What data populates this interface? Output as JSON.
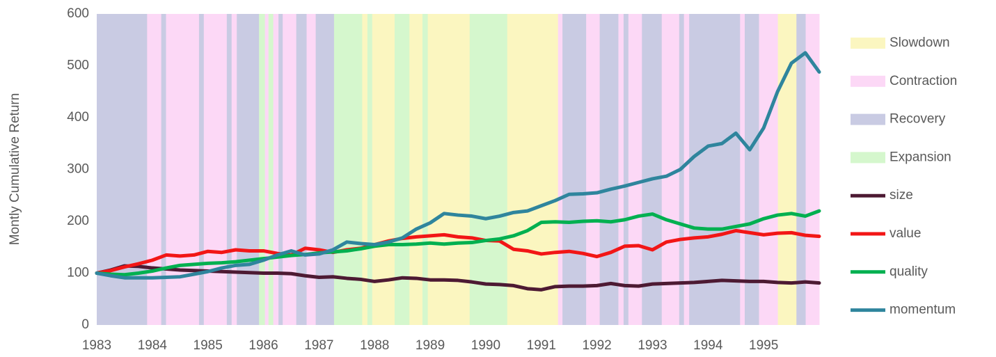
{
  "chart_data": {
    "type": "line",
    "y_label": "Montly Cumulative Return",
    "xlim": [
      1983,
      1996
    ],
    "xticks": [
      1983,
      1984,
      1985,
      1986,
      1987,
      1988,
      1989,
      1990,
      1991,
      1992,
      1993,
      1994,
      1995
    ],
    "ylim": [
      0,
      600
    ],
    "yticks": [
      0,
      100,
      200,
      300,
      400,
      500,
      600
    ],
    "grid": false,
    "legend": "right",
    "regimes": [
      {
        "name": "Slowdown",
        "color": "#fbf6c0",
        "periods": [
          [
            1987.77,
            1987.87
          ],
          [
            1987.95,
            1988.36
          ],
          [
            1988.62,
            1988.86
          ],
          [
            1988.95,
            1989.71
          ],
          [
            1990.38,
            1991.3
          ],
          [
            1995.25,
            1995.59
          ]
        ]
      },
      {
        "name": "Contraction",
        "color": "#fcd8f6",
        "periods": [
          [
            1983.9,
            1984.16
          ],
          [
            1984.24,
            1984.84
          ],
          [
            1984.92,
            1985.34
          ],
          [
            1985.42,
            1985.52
          ],
          [
            1986.02,
            1986.09
          ],
          [
            1986.17,
            1986.27
          ],
          [
            1986.34,
            1986.59
          ],
          [
            1986.77,
            1986.94
          ],
          [
            1991.3,
            1991.38
          ],
          [
            1991.8,
            1992.05
          ],
          [
            1992.38,
            1992.48
          ],
          [
            1992.56,
            1992.81
          ],
          [
            1993.16,
            1993.48
          ],
          [
            1993.56,
            1993.66
          ],
          [
            1994.57,
            1994.66
          ],
          [
            1994.91,
            1995.25
          ],
          [
            1995.75,
            1996
          ]
        ]
      },
      {
        "name": "Recovery",
        "color": "#c9cbe3",
        "periods": [
          [
            1983,
            1983.9
          ],
          [
            1984.16,
            1984.24
          ],
          [
            1984.84,
            1984.92
          ],
          [
            1985.34,
            1985.42
          ],
          [
            1985.52,
            1985.92
          ],
          [
            1986.27,
            1986.34
          ],
          [
            1986.59,
            1986.77
          ],
          [
            1986.94,
            1987.27
          ],
          [
            1991.38,
            1991.8
          ],
          [
            1992.05,
            1992.38
          ],
          [
            1992.48,
            1992.56
          ],
          [
            1992.81,
            1993.16
          ],
          [
            1993.48,
            1993.56
          ],
          [
            1993.66,
            1994.57
          ],
          [
            1994.66,
            1994.91
          ],
          [
            1995.59,
            1995.75
          ]
        ]
      },
      {
        "name": "Expansion",
        "color": "#d5f7cd",
        "periods": [
          [
            1985.92,
            1986.02
          ],
          [
            1986.09,
            1986.17
          ],
          [
            1987.27,
            1987.77
          ],
          [
            1987.87,
            1987.95
          ],
          [
            1988.36,
            1988.62
          ],
          [
            1988.86,
            1988.95
          ],
          [
            1989.71,
            1990.38
          ]
        ]
      }
    ],
    "x": [
      1983,
      1983.25,
      1983.5,
      1983.75,
      1984,
      1984.25,
      1984.5,
      1984.75,
      1985,
      1985.25,
      1985.5,
      1985.75,
      1986,
      1986.25,
      1986.5,
      1986.75,
      1987,
      1987.25,
      1987.5,
      1987.75,
      1988,
      1988.25,
      1988.5,
      1988.75,
      1989,
      1989.25,
      1989.5,
      1989.75,
      1990,
      1990.25,
      1990.5,
      1990.75,
      1991,
      1991.25,
      1991.5,
      1991.75,
      1992,
      1992.25,
      1992.5,
      1992.75,
      1993,
      1993.25,
      1993.5,
      1993.75,
      1994,
      1994.25,
      1994.5,
      1994.75,
      1995,
      1995.25,
      1995.5,
      1995.75,
      1996
    ],
    "series": [
      {
        "name": "size",
        "color": "#4d1a33",
        "values": [
          100,
          106,
          114,
          113,
          110,
          108,
          106,
          105,
          104,
          103,
          102,
          101,
          100,
          100,
          99,
          95,
          92,
          93,
          90,
          88,
          84,
          87,
          91,
          90,
          87,
          87,
          86,
          83,
          79,
          78,
          76,
          70,
          68,
          74,
          75,
          75,
          76,
          80,
          76,
          75,
          79,
          80,
          81,
          82,
          84,
          86,
          85,
          84,
          84,
          82,
          81,
          83,
          81
        ]
      },
      {
        "name": "value",
        "color": "#f21616",
        "values": [
          100,
          105,
          112,
          118,
          125,
          135,
          133,
          135,
          142,
          140,
          145,
          143,
          143,
          138,
          135,
          148,
          145,
          140,
          145,
          148,
          155,
          162,
          167,
          170,
          172,
          174,
          170,
          168,
          163,
          162,
          146,
          143,
          137,
          140,
          142,
          138,
          132,
          140,
          152,
          153,
          145,
          160,
          165,
          168,
          170,
          175,
          182,
          178,
          174,
          177,
          178,
          173,
          171
        ]
      },
      {
        "name": "quality",
        "color": "#00b050",
        "values": [
          100,
          98,
          97,
          100,
          104,
          110,
          115,
          117,
          119,
          120,
          122,
          125,
          128,
          131,
          134,
          136,
          139,
          141,
          143,
          147,
          152,
          155,
          155,
          156,
          158,
          156,
          158,
          159,
          163,
          166,
          172,
          182,
          198,
          199,
          198,
          200,
          201,
          199,
          203,
          210,
          214,
          203,
          195,
          187,
          185,
          185,
          190,
          195,
          205,
          212,
          215,
          210,
          220
        ]
      },
      {
        "name": "momentum",
        "color": "#2f859d",
        "values": [
          100,
          95,
          91,
          91,
          91,
          92,
          93,
          98,
          103,
          110,
          115,
          117,
          125,
          135,
          143,
          135,
          137,
          145,
          160,
          157,
          155,
          160,
          168,
          185,
          197,
          215,
          212,
          210,
          205,
          210,
          217,
          220,
          230,
          240,
          252,
          253,
          255,
          262,
          268,
          275,
          282,
          287,
          300,
          325,
          345,
          350,
          370,
          338,
          380,
          450,
          505,
          525,
          488
        ]
      }
    ]
  }
}
